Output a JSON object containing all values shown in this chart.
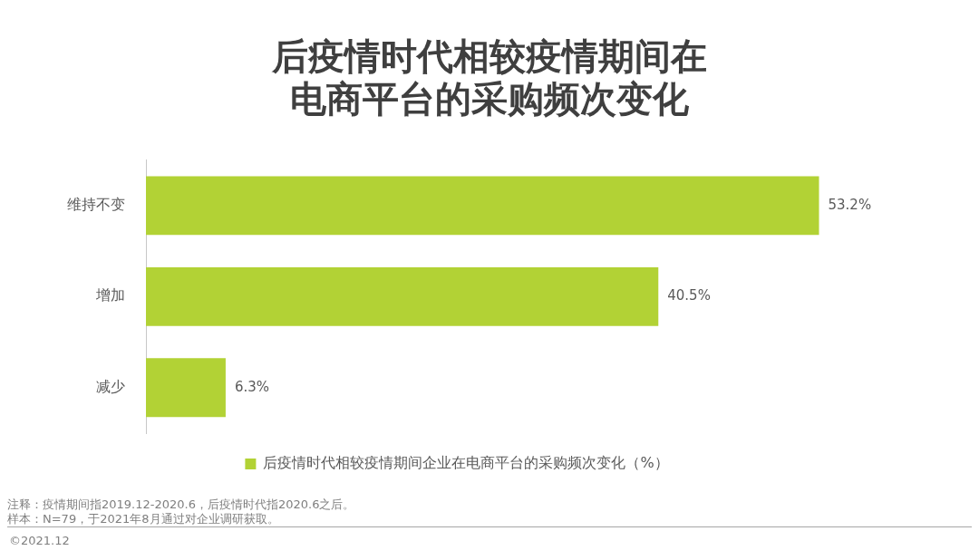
{
  "chart_data": {
    "type": "bar",
    "orientation": "horizontal",
    "title": "后疫情时代相较疫情期间在电商平台的采购频次变化",
    "categories": [
      "维持不变",
      "增加",
      "减少"
    ],
    "series": [
      {
        "name": "后疫情时代相较疫情期间企业在电商平台的采购频次变化（%）",
        "color": "#b2d235",
        "values": [
          53.2,
          40.5,
          6.3
        ],
        "value_labels": [
          "53.2%",
          "40.5%",
          "6.3%"
        ]
      }
    ],
    "tick_labels": "y",
    "legend": "bottom",
    "annotations": [
      "注释：疫情期间指2019.12-2020.6，后疫情时代指2020.6之后。",
      "样本：N=79，于2021年8月通过对企业调研获取。",
      "©2021.12"
    ]
  }
}
